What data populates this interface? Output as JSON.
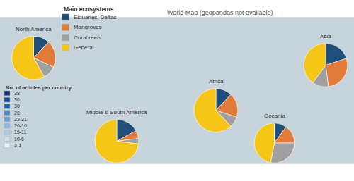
{
  "chart_data": [
    {
      "type": "map",
      "xlim": [
        -180,
        180
      ],
      "ylim": [
        -65,
        85
      ],
      "color": "#c8d4dc",
      "annotations": [
        "World Map (geopandas not available)"
      ]
    },
    {
      "type": "legend",
      "title": "No. of articles per country",
      "categories": [
        "38",
        "36",
        "30",
        "28",
        "22-21",
        "20-16",
        "15-11",
        "10-6",
        "3-1"
      ],
      "colors": [
        "#0d2d6b",
        "#1a4899",
        "#2060b0",
        "#4a8ec0",
        "#6aa0d0",
        "#8bbce0",
        "#aacce8",
        "#cce0f0",
        "#e8f4fa"
      ]
    },
    {
      "type": "legend",
      "title": "Main ecosystems",
      "categories": [
        "Estuaries, Deltas",
        "Mangroves",
        "Coral reefs",
        "General"
      ],
      "colors": [
        "#1f4e79",
        "#e07b39",
        "#a0a0a0",
        "#f5c518"
      ]
    },
    {
      "type": "pie",
      "title": "North America",
      "categories": [
        "Estuaries, Deltas",
        "Mangroves",
        "Coral reefs",
        "General"
      ],
      "values": [
        0.12,
        0.2,
        0.1,
        0.58
      ],
      "colors": [
        "#1f4e79",
        "#e07b39",
        "#a0a0a0",
        "#f5c518"
      ]
    },
    {
      "type": "pie",
      "title": "Middle & South America",
      "categories": [
        "Estuaries, Deltas",
        "Mangroves",
        "Coral reefs",
        "General"
      ],
      "values": [
        0.17,
        0.06,
        0.04,
        0.73
      ],
      "colors": [
        "#1f4e79",
        "#e07b39",
        "#a0a0a0",
        "#f5c518"
      ]
    },
    {
      "type": "pie",
      "title": "Africa",
      "categories": [
        "Estuaries, Deltas",
        "Mangroves",
        "Coral reefs",
        "General"
      ],
      "values": [
        0.12,
        0.18,
        0.08,
        0.62
      ],
      "colors": [
        "#1f4e79",
        "#e07b39",
        "#a0a0a0",
        "#f5c518"
      ]
    },
    {
      "type": "pie",
      "title": "Asia",
      "categories": [
        "Estuaries, Deltas",
        "Mangroves",
        "Coral reefs",
        "General"
      ],
      "values": [
        0.2,
        0.28,
        0.12,
        0.4
      ],
      "colors": [
        "#1f4e79",
        "#e07b39",
        "#a0a0a0",
        "#f5c518"
      ]
    },
    {
      "type": "pie",
      "title": "Oceania",
      "categories": [
        "Estuaries, Deltas",
        "Mangroves",
        "Coral reefs",
        "General"
      ],
      "values": [
        0.1,
        0.15,
        0.28,
        0.47
      ],
      "colors": [
        "#1f4e79",
        "#e07b39",
        "#a0a0a0",
        "#f5c518"
      ]
    }
  ]
}
